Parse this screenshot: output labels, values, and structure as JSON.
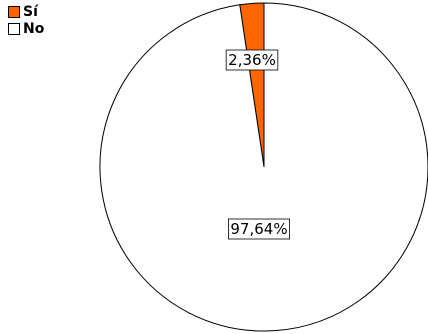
{
  "chart_data": {
    "type": "pie",
    "categories": [
      "Sí",
      "No"
    ],
    "values": [
      2.36,
      97.64
    ],
    "data_labels": [
      "2,36%",
      "97,64%"
    ],
    "colors": [
      "#ff6600",
      "#ffffff"
    ],
    "legend_position": "top-left",
    "start_angle": "12 o'clock",
    "direction": "clockwise"
  }
}
